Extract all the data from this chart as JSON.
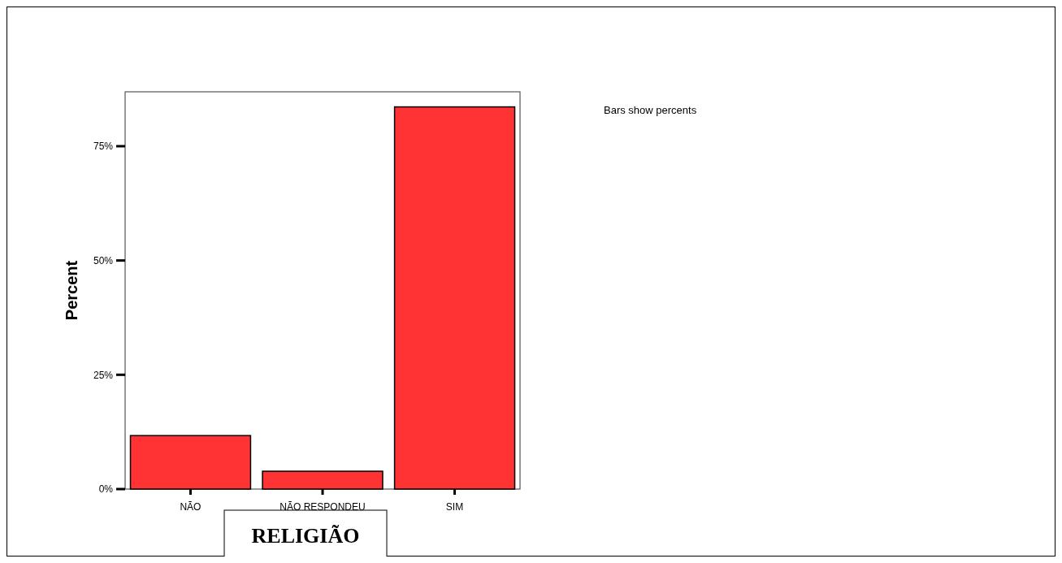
{
  "chart_data": {
    "type": "bar",
    "xlabel": "RELIGIÃO",
    "ylabel": "Percent",
    "categories": [
      "NÃO",
      "NÃO RESPONDEU",
      "SIM"
    ],
    "values": [
      11.7,
      3.9,
      83.6
    ],
    "color": "#ff3333",
    "ylim": [
      0,
      86.9
    ],
    "yticks": [
      {
        "value": 0,
        "label": "0%"
      },
      {
        "value": 25,
        "label": "25%"
      },
      {
        "value": 50,
        "label": "50%"
      },
      {
        "value": 75,
        "label": "75%"
      }
    ],
    "annotations": [
      "Bars show percents"
    ]
  }
}
